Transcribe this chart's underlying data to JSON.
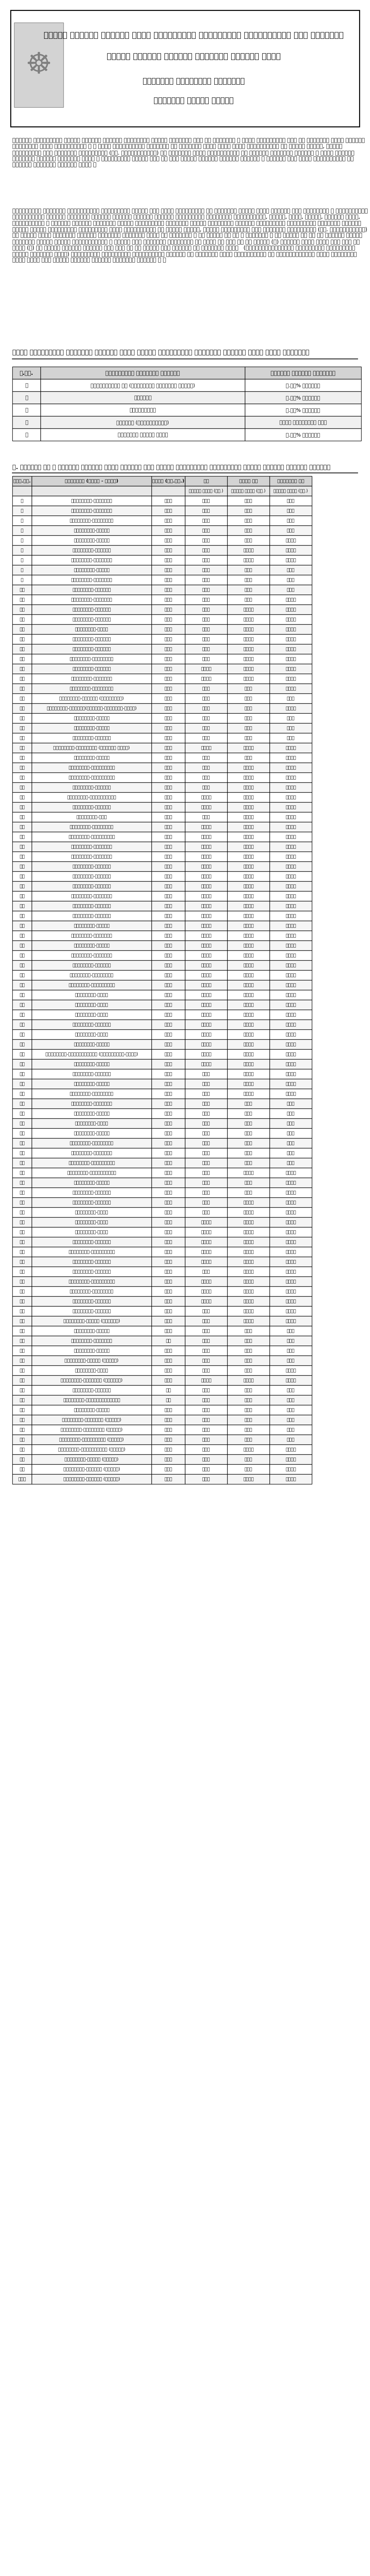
{
  "title_line1": "अन्तर प्रदेश संचालन हुने सार्वजनिक यातायातका यात्रुवाहक तथा मालवाहक",
  "title_line2": "सवारी साधनको भाडादर समायोजन गरिएको बारे",
  "title_line3": "यातायात व्यवस्था विभागको",
  "title_line4": "अत्यन्त जरुरी सूचना",
  "para1": "विगतमा सार्वजनिक सवारी साधनको भाडादर निर्धारण गर्दा इन्धनको अंश ३५ प्रतिशत र अन्य सूचकहरुको अंश ६५ प्रतिशत मानी भाडादर निर्धारण भएको सर्वविदितै छ । भाडा निर्धारणका विभिन्न १३ सूचकलाई आधार मानी मिति २०७८।०३।२७ को नेपाल सरकार, भौतिक पूर्वाधार तथा यातायात मन्त्रालय (मा. मन्त्रीस्तर) को सहमतिमा मिति २०७८।०३।२९ मा भाडादर समायोजन गरिएको र त्यस पश्चात विभिन्न मितिमा इन्धनमा भएको ५ प्रतिशतको मूल्य घटी वा बढी हुँदा भाडादर समयोजन गरिएको र अन्तिम पटक मिति २०८०।०४।३१ मा भाडादर समायोजन गरिएको थियो ।",
  "para2": "सार्वजनिक यातायात सञ्चालनसंग सम्बन्धित लगानी तथा खर्च सम्बन्धमा यस विभागले गरेको बजार अध्ययन तथा विश्लेषण र सरोकारवाला पक्षहरुसँग गरिएको परामर्श समेतका आधारमा पहिचान गरिएका यातायातका श्रमिकको पारिश्रमिक, इन्धन, टायर, व्याज, संचालन खर्च, ह्याककट्टी र संचालन मुनाफा लगायतका मूख्य सूचकहरुमा देखिएको मूल्य वृद्धिको आधारमा सार्वजनिक यातायातका सवारीको भाडामा गरिनु पर्ने समायोजनका सम्बन्धमा मिति २०८१।०९।११ मा नेपाल सरकार, भौतिक पूर्वाधार तथा यातायात मन्त्रालय (मा. मन्त्रीस्तर) को सहमित समेत प्राप्त भएकोले नेपालको संविधान २०७२ को अनुसूची ५ को बुँदा नं २० र अनुसूची ९ को बुँदा नं १५ का आधारमा नेपाल सरकारले गरेको कार्य विस्तृतीकरण र सवारी तथा यातायात व्यवस्था ऐन २०४९ को दफा ९६ को उपदफा (१) बमोजिम सोही ऐनको दफा १५३ को खण्ड (घ) ले दिएको अधिकार प्रयोग गरी दुई वा सो भन्दा बढी प्रदेश भई सञ्चालन हुने   (राष्ट्रियस्तरका सार्वजनिक यातायातका रुटमा सञ्चालन हुने) सार्वजनिक यातायातका सवारीहरुको भाडादर यस विभागको मिति २०८१।०९।२२ को निर्णयानुसार सोही मितिदेखि लागु हुने गरी देहाय अनुसार भाडादर समायोजन गरिएको छ ।",
  "section_title": "भाडा समायोजनको विभिन्न सूचकमा भएको मूल्य प्रतिशतको समायोजन पश्चात भएको भाडा समायोजन",
  "table1_headers": [
    "क.सं.",
    "सार्वजनिक सवारीको प्रकार",
    "भाडामा गरिएको समायोजन"
  ],
  "table1_rows": [
    [
      "१",
      "यात्रुवाहक बस (काठमाडौं उपत्यका बाहेक)",
      "२.३०% वृद्धि"
    ],
    [
      "२",
      "मिनीबस",
      "२.३०% वृद्धि"
    ],
    [
      "३",
      "माइक्रोबस",
      "२.३०% वृद्धि"
    ],
    [
      "४",
      "टेम्पो (इलेक्ट्रिक)",
      "कुनै परिवर्तन छैन"
    ],
    [
      "५",
      "मालबाहक सवारी साधन",
      "२.३०% वृद्धि"
    ]
  ],
  "section2_title": "क. यात्री बस र यात्री टेम्पो तर्फ प्रदेश पार गर्ने सार्वजनिक यातायातका सवारी साधनको भाडादर तालिका",
  "table2_headers": [
    "क्र.सं.",
    "गन्तव्य (देखि - सम्म)",
    "दूरी (कि.मि.)",
    "बस",
    "मिनी बस",
    "माइक्रो बस"
  ],
  "table2_subheaders": [
    "",
    "",
    "",
    "हालको भाडा (रु.)",
    "हालको भाडा (रु.)",
    "हालको भाडा (रु.)"
  ],
  "routes": [
    [
      "१",
      "काठमाडौं-वीरगञ्ज",
      "१४५",
      "४३०",
      "५४०",
      "६३०"
    ],
    [
      "२",
      "काठमाडौं-हेटौंडा",
      "१०३",
      "३१५",
      "३९५",
      "४५५"
    ],
    [
      "३",
      "काठमाडौं-नारायणगढ",
      "१४४",
      "४३०",
      "५४०",
      "६२५"
    ],
    [
      "४",
      "काठमाडौं-पोखरा",
      "२०१",
      "५९०",
      "७४०",
      "८७०"
    ],
    [
      "५",
      "काठमाडौं-बुटवल",
      "२७२",
      "७९०",
      "९९०",
      "११५५"
    ],
    [
      "६",
      "काठमाडौं-भैरहवा",
      "२८०",
      "८१५",
      "१०२०",
      "११९०"
    ],
    [
      "७",
      "काठमाडौं-तौलिहवा",
      "२९४",
      "८५५",
      "१०७०",
      "१२५०"
    ],
    [
      "८",
      "काठमाडौं-गोरखा",
      "१७५",
      "५१५",
      "६४५",
      "७५५"
    ],
    [
      "९",
      "काठमाडौं-बेसीशहर",
      "१७७",
      "५२०",
      "६५०",
      "७६०"
    ],
    [
      "१०",
      "काठमाडौं-दुम्रे",
      "१५७",
      "४६५",
      "५८५",
      "६८०"
    ],
    [
      "११",
      "काठमाडौं-दाउन्ने",
      "२६४",
      "७७०",
      "९६५",
      "११२५"
    ],
    [
      "१२",
      "काठमाडौं-सुनौली",
      "२९२",
      "८५०",
      "१०६५",
      "१२४५"
    ],
    [
      "१३",
      "काठमाडौं-बागलुङ",
      "२९७",
      "८६५",
      "१०८५",
      "१२६५"
    ],
    [
      "१४",
      "काठमाडौं-बेनी",
      "३१०",
      "९०५",
      "११३५",
      "१३२५"
    ],
    [
      "१५",
      "काठमाडौं-तानसेन",
      "३०७",
      "८९५",
      "११२०",
      "१३०५"
    ],
    [
      "१६",
      "काठमाडौं-कुश्मा",
      "३११",
      "९०५",
      "११३५",
      "१३२५"
    ],
    [
      "१७",
      "काठमाडौं-म्याग्दी",
      "३२०",
      "९३०",
      "११६५",
      "१३६०"
    ],
    [
      "१८",
      "काठमाडौं-जोमसोम",
      "४०४",
      "११७०",
      "१४६५",
      "१७१०"
    ],
    [
      "१९",
      "काठमाडौं-मुस्ताङ",
      "४८३",
      "११७०",
      "१४६५",
      "१७१०"
    ],
    [
      "२०",
      "काठमाडौं-स्याङ्जा",
      "२५०",
      "७३०",
      "९१५",
      "१०७०"
    ],
    [
      "२१",
      "काठमाडौं-नवलपुर (मोटरबाटो)",
      "१९०",
      "५६०",
      "७०५",
      "८२०"
    ],
    [
      "२२",
      "काठमाडौं-गण्डकी(दुम्रे-बेसीशहर-चामे)",
      "२३३",
      "६८५",
      "८५५",
      "१०००"
    ],
    [
      "२३",
      "काठमाडौं-तनहुँ",
      "१८१",
      "५३५",
      "६७०",
      "७८०"
    ],
    [
      "२४",
      "काठमाडौं-लमजुङ",
      "१९७",
      "५८०",
      "७२५",
      "८५०"
    ],
    [
      "२५",
      "काठमाडौं-कास्की",
      "२०१",
      "५९०",
      "७४०",
      "८७०"
    ],
    [
      "२६",
      "काठमाडौं-म्याग्दी (जोमसोम भाडा)",
      "४०४",
      "११७०",
      "१४६५",
      "१७१०"
    ],
    [
      "२७",
      "काठमाडौं-पर्वत",
      "२७०",
      "७८५",
      "९८५",
      "११५०"
    ],
    [
      "२८",
      "काठमाडौं-कपिलवस्तु",
      "३२५",
      "९४५",
      "११८५",
      "१३८५"
    ],
    [
      "२९",
      "काठमाडौं-रुपन्देही",
      "२८०",
      "८१५",
      "१०२०",
      "११९०"
    ],
    [
      "३०",
      "काठमाडौं-पाल्पा",
      "३०७",
      "८९५",
      "११२०",
      "१३०५"
    ],
    [
      "३१",
      "काठमाडौं-अर्घाखाँची",
      "३५७",
      "१०३५",
      "१२९५",
      "१५१०"
    ],
    [
      "३२",
      "काठमाडौं-गुल्मी",
      "३५९",
      "१०४०",
      "१३०५",
      "१५२०"
    ],
    [
      "३३",
      "काठमाडौं-दाङ",
      "३३५",
      "९७५",
      "१२२०",
      "१४२५"
    ],
    [
      "३४",
      "काठमाडौं-तुलसीपुर",
      "३५७",
      "१०३५",
      "१२९५",
      "१५१०"
    ],
    [
      "३५",
      "काठमाडौं-नेपालगञ्ज",
      "५०३",
      "१४५५",
      "१८२०",
      "२१२५"
    ],
    [
      "३६",
      "काठमाडौं-सुर्खेत",
      "५०६",
      "१४६५",
      "१८३५",
      "२१४०"
    ],
    [
      "३७",
      "काठमाडौं-जाजरकोट",
      "५८४",
      "१६८५",
      "२११०",
      "२४६०"
    ],
    [
      "३८",
      "काठमाडौं-डोल्पा",
      "५४८",
      "१५८५",
      "१९८५",
      "२३१५"
    ],
    [
      "३९",
      "काठमाडौं-जुम्ला",
      "७३३",
      "२११०",
      "२६४०",
      "३०८५"
    ],
    [
      "४०",
      "काठमाडौं-हुम्ला",
      "७९१",
      "२२८०",
      "२८५५",
      "३३३०"
    ],
    [
      "४१",
      "काठमाडौं-कालिकोट",
      "५८९",
      "१७०५",
      "२१३०",
      "२४८५"
    ],
    [
      "४२",
      "काठमाडौं-सल्यान",
      "४३२",
      "१२५०",
      "१५६५",
      "१८२५"
    ],
    [
      "४३",
      "काठमाडौं-रोल्पा",
      "४५४",
      "१३१५",
      "१६४५",
      "१९२०"
    ],
    [
      "४४",
      "काठमाडौं-रुकुम",
      "५१७",
      "१४९५",
      "१८७०",
      "२१८०"
    ],
    [
      "४५",
      "काठमाडौं-प्युठान",
      "४२३",
      "१२२५",
      "१५३५",
      "१७९०"
    ],
    [
      "४६",
      "काठमाडौं-बाँके",
      "५०३",
      "१४५५",
      "१८२०",
      "२१२५"
    ],
    [
      "४७",
      "काठमाडौं-बर्दिया",
      "५८०",
      "१६७५",
      "२०९५",
      "२४४५"
    ],
    [
      "४८",
      "काठमाडौं-कैलाली",
      "७१०",
      "२०५०",
      "२५६५",
      "२९९५"
    ],
    [
      "४९",
      "काठमाडौं-कञ्चनपुर",
      "७५५",
      "२१७५",
      "२७२५",
      "३१८०"
    ],
    [
      "५०",
      "काठमाडौं-डडेल्धुरा",
      "७४१",
      "२१३५",
      "२६७५",
      "३१२०"
    ],
    [
      "५१",
      "काठमाडौं-डोटी",
      "७०५",
      "२०३५",
      "२५४५",
      "२९७५"
    ],
    [
      "५२",
      "काठमाडौं-अछाम",
      "६१५",
      "१७७५",
      "२२२०",
      "२५९०"
    ],
    [
      "५३",
      "काठमाडौं-बझाङ",
      "७६७",
      "२२१०",
      "२७६५",
      "३२३०"
    ],
    [
      "५४",
      "काठमाडौं-बाजुरा",
      "७०७",
      "२०४०",
      "२५५५",
      "२९८०"
    ],
    [
      "५५",
      "काठमाडौं-मुगु",
      "७०१",
      "२०२५",
      "२५३५",
      "२९५५"
    ],
    [
      "५६",
      "काठमाडौं-दैलेख",
      "५५३",
      "१५९५",
      "२०००",
      "२३३५"
    ],
    [
      "५७",
      "काठमाडौं-सुदूरपश्चिम (नागढुङ्गा-लमही)",
      "७५५",
      "२१७५",
      "२७२५",
      "३१८०"
    ],
    [
      "५८",
      "काठमाडौं-धनगढी",
      "७०७",
      "२०४०",
      "२५५५",
      "२९८०"
    ],
    [
      "५९",
      "काठमाडौं-जनकपुर",
      "३२१",
      "९३५",
      "११७०",
      "१३६५"
    ],
    [
      "६०",
      "काठमाडौं-धनुषा",
      "३३४",
      "९७०",
      "१२१५",
      "१४१५"
    ],
    [
      "६१",
      "काठमाडौं-महोत्तरी",
      "२८५",
      "८३०",
      "१०४०",
      "१२१५"
    ],
    [
      "६२",
      "काठमाडौं-सर्लाही",
      "१७१",
      "५०५",
      "६३५",
      "७४०"
    ],
    [
      "६३",
      "काठमाडौं-रौतहट",
      "१९९",
      "५८५",
      "७३५",
      "८६०"
    ],
    [
      "६४",
      "काठमाडौं-बारा",
      "१७८",
      "५२५",
      "६५५",
      "७६५"
    ],
    [
      "६५",
      "काठमाडौं-पर्सा",
      "१४५",
      "४३०",
      "५४०",
      "६३०"
    ],
    [
      "६६",
      "काठमाडौं-सिन्धुली",
      "१७१",
      "५०५",
      "६३५",
      "७४०"
    ],
    [
      "६७",
      "काठमाडौं-रामेछाप",
      "१०६",
      "३२०",
      "४०५",
      "४७०"
    ],
    [
      "६८",
      "काठमाडौं-ओखलढुङ्गा",
      "१७१",
      "५०५",
      "६३५",
      "७४०"
    ],
    [
      "६९",
      "काठमाडौं-सोलुखुम्बु",
      "२७९",
      "८१५",
      "१०२०",
      "११९०"
    ],
    [
      "७०",
      "काठमाडौं-खोटाङ",
      "२४०",
      "७०५",
      "८८५",
      "१०३०"
    ],
    [
      "७१",
      "काठमाडौं-उदयपुर",
      "२३८",
      "७०५",
      "८८०",
      "१०२५"
    ],
    [
      "७२",
      "काठमाडौं-सुनसरी",
      "३०९",
      "९०५",
      "११३०",
      "१३२०"
    ],
    [
      "७३",
      "काठमाडौं-मोरङ",
      "३३२",
      "९६५",
      "१२१०",
      "१४१०"
    ],
    [
      "७४",
      "काठमाडौं-झापा",
      "३७५",
      "१०८५",
      "१३५५",
      "१५८५"
    ],
    [
      "७५",
      "काठमाडौं-इलाम",
      "४३३",
      "१२५०",
      "१५६५",
      "१८२५"
    ],
    [
      "७६",
      "काठमाडौं-पाँचथर",
      "४५३",
      "१३१०",
      "१६४०",
      "१९१५"
    ],
    [
      "७७",
      "काठमाडौं-ताप्लेजुङ",
      "५१६",
      "१४९०",
      "१८६५",
      "२१७५"
    ],
    [
      "७८",
      "काठमाडौं-धनकुटा",
      "३६२",
      "१०४५",
      "१३१०",
      "१५३०"
    ],
    [
      "७९",
      "काठमाडौं-भोजपुर",
      "३२५",
      "९४५",
      "११८०",
      "१३८०"
    ],
    [
      "८०",
      "काठमाडौं-संखुवासभा",
      "३४५",
      "१००५",
      "१२५५",
      "१४६५"
    ],
    [
      "८१",
      "काठमाडौं-तेह्रथुम",
      "४२३",
      "१२२५",
      "१५३५",
      "१७९०"
    ],
    [
      "८२",
      "काठमाडौं-सप्तरी",
      "३७७",
      "१०९०",
      "१३६५",
      "१५९५"
    ],
    [
      "८३",
      "काठमाडौं-सिराहा",
      "३२७",
      "९५५",
      "११९५",
      "१३९५"
    ],
    [
      "८४",
      "काठमाडौं-धनुषा (जनकपुर)",
      "३३४",
      "९७०",
      "१२१५",
      "१४१५"
    ],
    [
      "८५",
      "काठमाडौं-रसुवा",
      "१३७",
      "४१०",
      "५१५",
      "६०५"
    ],
    [
      "८६",
      "काठमाडौं-नुवाकोट",
      "८०",
      "२५०",
      "३१०",
      "३६५"
    ],
    [
      "८७",
      "काठमाडौं-धादिङ",
      "१२०",
      "३५५",
      "४४५",
      "५२०"
    ],
    [
      "८८",
      "काठमाडौं-गोरखा (अर्को)",
      "१७५",
      "५१५",
      "६४५",
      "७५५"
    ],
    [
      "८९",
      "काठमाडौं-मनाङ",
      "२३३",
      "६८५",
      "८५५",
      "१०००"
    ],
    [
      "९०",
      "काठमाडौं-मुस्ताङ (जोमसोम)",
      "४०४",
      "११७०",
      "१४६५",
      "१७१०"
    ],
    [
      "९१",
      "काठमाडौं-काभ्रे",
      "३३",
      "१५०",
      "१८५",
      "२२०"
    ],
    [
      "९२",
      "काठमाडौं-सिन्धुपाल्चोक",
      "७५",
      "२३०",
      "२९०",
      "३४०"
    ],
    [
      "९३",
      "काठमाडौं-दोलखा",
      "१४४",
      "४३०",
      "५४०",
      "६३०"
    ],
    [
      "९४",
      "काठमाडौं-रामेछाप (अर्को)",
      "१०६",
      "३२०",
      "४०५",
      "४७०"
    ],
    [
      "९५",
      "काठमाडौं-सिन्धुली (अर्को)",
      "१७१",
      "५०५",
      "६३५",
      "७४०"
    ],
    [
      "९६",
      "काठमाडौं-ओखलढुङ्गा (अर्को)",
      "१७१",
      "५०५",
      "६३५",
      "७४०"
    ],
    [
      "९७",
      "काठमाडौं-सोलुखुम्बु (अर्को)",
      "२७९",
      "८१५",
      "१०२०",
      "११९०"
    ],
    [
      "९८",
      "काठमाडौं-खोटाङ (अर्को)",
      "२४०",
      "७०५",
      "८८५",
      "१०३०"
    ],
    [
      "९९",
      "काठमाडौं-उदयपुर (अर्को)",
      "२३८",
      "७०५",
      "८८०",
      "१०२५"
    ],
    [
      "१००",
      "काठमाडौं-सुनसरी (अर्को)",
      "३०९",
      "९०५",
      "११३०",
      "१३२०"
    ]
  ],
  "bg_color": "#ffffff",
  "header_bg": "#d3d3d3",
  "border_color": "#000000",
  "text_color": "#000000",
  "title_box_border": "#000000"
}
